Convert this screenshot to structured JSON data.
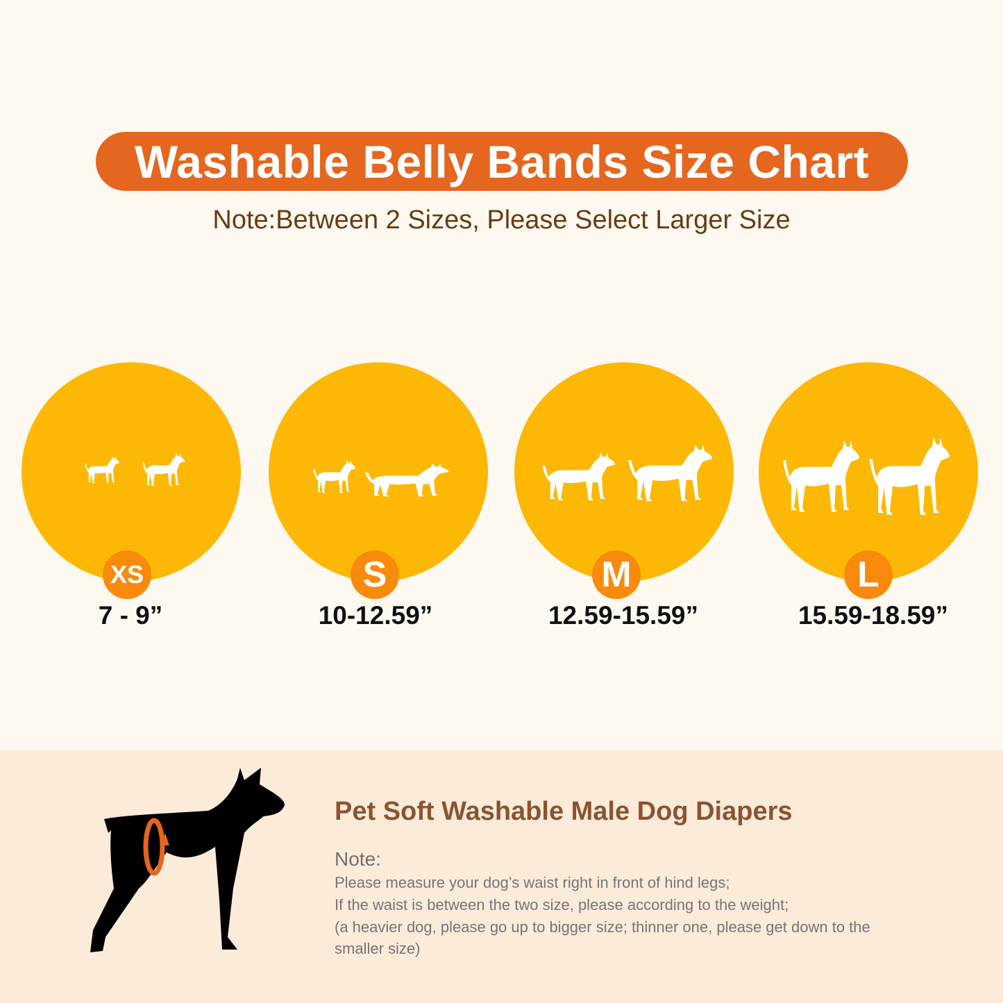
{
  "header": {
    "title": "Washable Belly Bands Size Chart",
    "note": "Note:Between 2 Sizes, Please Select Larger Size"
  },
  "colors": {
    "title_bg": "#E5661F",
    "circle": "#FDB805",
    "badge": "#F98A0C",
    "bottom_bg": "#FDEBDA",
    "heading": "#8B5430"
  },
  "sizes": [
    {
      "label": "XS",
      "range": "7 - 9”",
      "icons": [
        "chihuahua-icon",
        "pinscher-icon"
      ]
    },
    {
      "label": "S",
      "range": "10-12.59”",
      "icons": [
        "chihuahua-icon",
        "dachshund-icon"
      ]
    },
    {
      "label": "M",
      "range": "12.59-15.59”",
      "icons": [
        "beagle-icon",
        "bull-terrier-icon"
      ]
    },
    {
      "label": "L",
      "range": "15.59-18.59”",
      "icons": [
        "terrier-icon",
        "pointer-icon"
      ]
    }
  ],
  "info": {
    "heading": "Pet Soft Washable Male Dog Diapers",
    "note_label": "Note:",
    "lines": [
      "Please measure your dog’s waist right in front of hind legs;",
      "If the waist is between the two size, please according to the weight;",
      "(a heavier dog, please go up to bigger size; thinner one, please get down to the",
      "smaller size)"
    ]
  }
}
